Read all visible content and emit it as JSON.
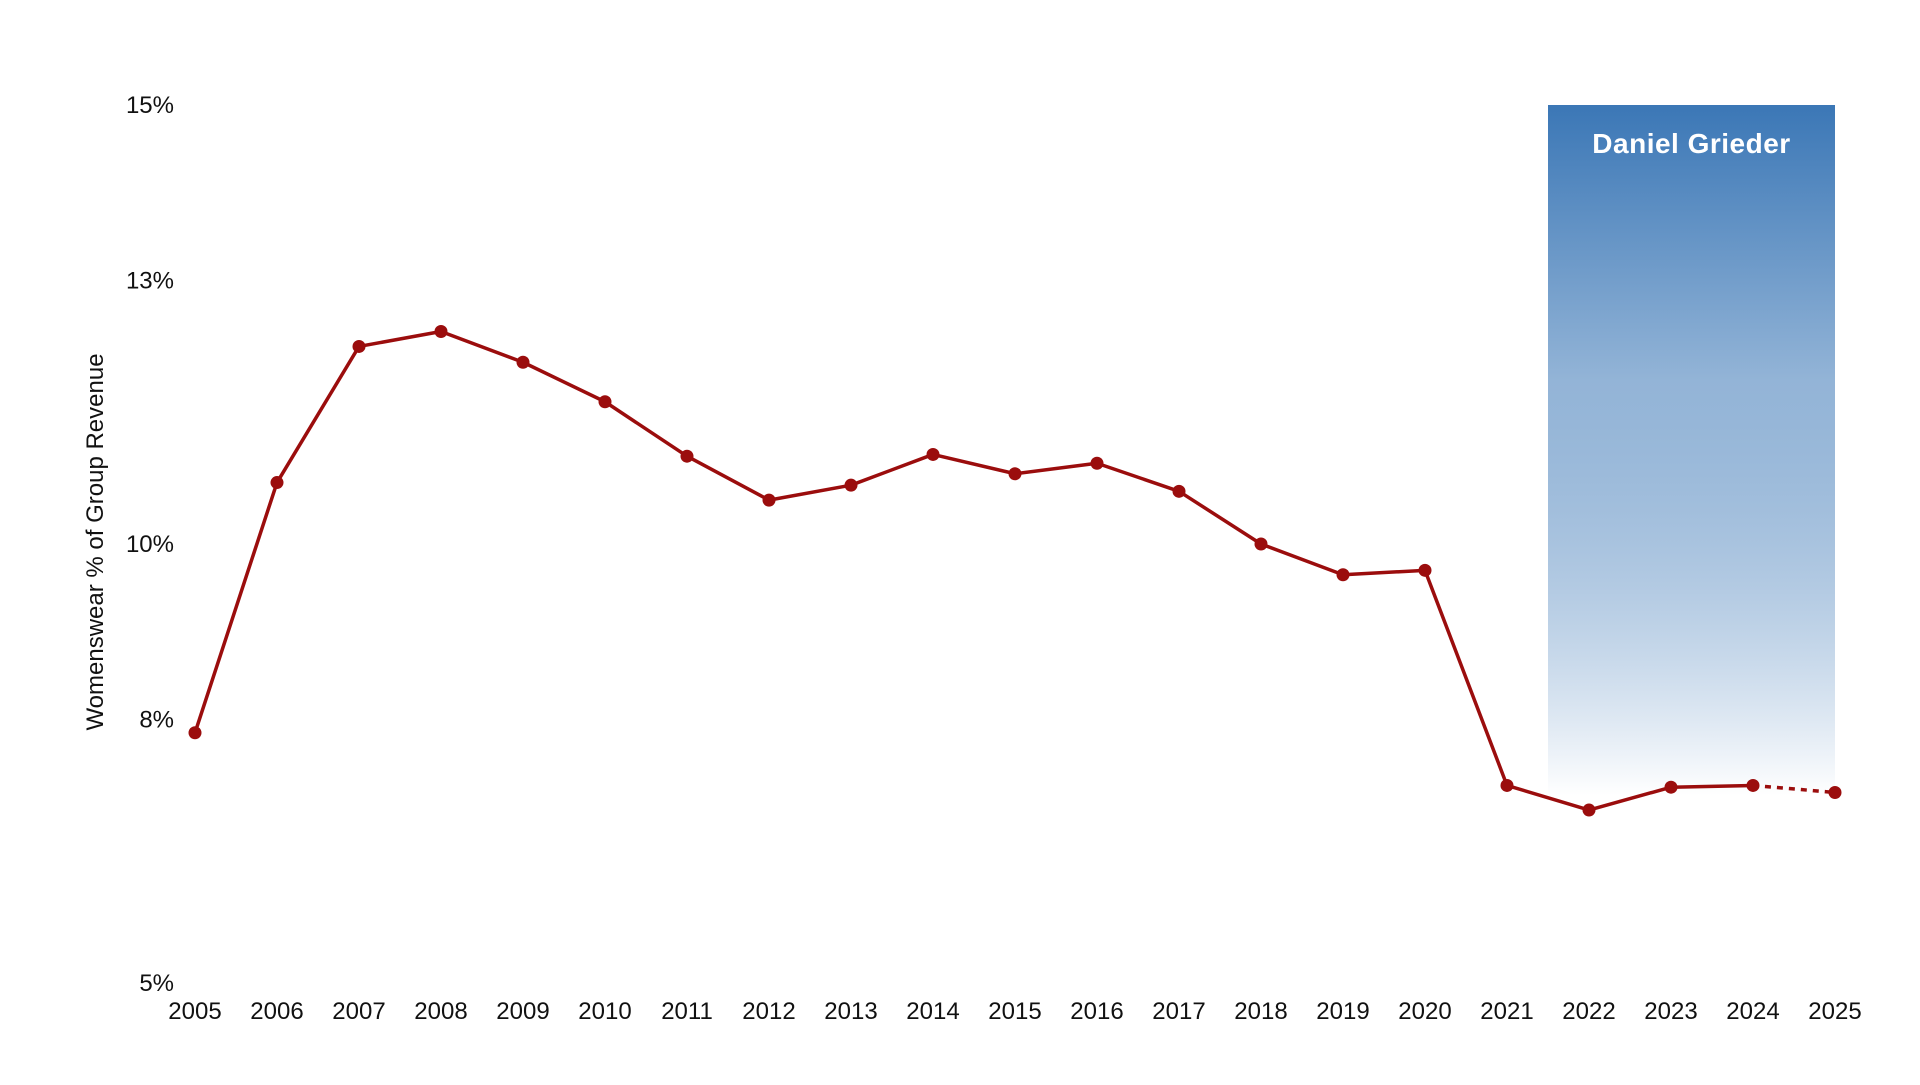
{
  "chart_data": {
    "type": "line",
    "title": "",
    "xlabel": "",
    "ylabel": "Womenswear % of Group Revenue",
    "ylim": [
      5,
      15
    ],
    "y_ticks": [
      {
        "value": 5,
        "label": "5%"
      },
      {
        "value": 8,
        "label": "8%"
      },
      {
        "value": 10,
        "label": "10%"
      },
      {
        "value": 13,
        "label": "13%"
      },
      {
        "value": 15,
        "label": "15%"
      }
    ],
    "x_tick_labels": [
      "2005",
      "2006",
      "2007",
      "2008",
      "2009",
      "2010",
      "2011",
      "2012",
      "2013",
      "2014",
      "2015",
      "2016",
      "2017",
      "2018",
      "2019",
      "2020",
      "2021",
      "2022",
      "2023",
      "2024",
      "2025"
    ],
    "x": [
      2005,
      2006,
      2007,
      2008,
      2009,
      2010,
      2011,
      2012,
      2013,
      2014,
      2015,
      2016,
      2017,
      2018,
      2019,
      2020,
      2021,
      2022,
      2023,
      2024,
      2025
    ],
    "series": [
      {
        "values": [
          7.85,
          10.7,
          12.25,
          12.42,
          12.07,
          11.62,
          11.0,
          10.5,
          10.67,
          11.02,
          10.8,
          10.92,
          10.6,
          10.0,
          9.65,
          9.7,
          7.25,
          6.97,
          7.23,
          7.25,
          7.17
        ],
        "projected_from_x": 2024,
        "color": "#9b0d0d"
      }
    ],
    "highlight_band": {
      "label": "Daniel Grieder",
      "x_start": 2021.5,
      "x_end": 2025,
      "y_top": 15,
      "color_top": "#3b77b6",
      "color_bottom": "#ffffff"
    },
    "grid": false,
    "legend": "none"
  }
}
